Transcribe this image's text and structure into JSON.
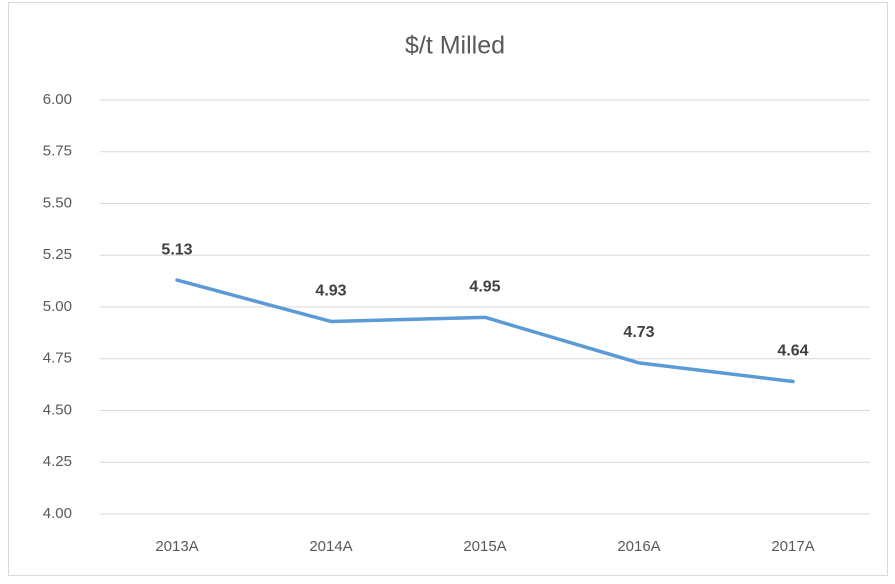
{
  "chart_data": {
    "type": "line",
    "title": "$/t Milled",
    "categories": [
      "2013A",
      "2014A",
      "2015A",
      "2016A",
      "2017A"
    ],
    "values": [
      5.13,
      4.93,
      4.95,
      4.73,
      4.64
    ],
    "color": "#5b9bd5",
    "ylim": [
      4,
      6
    ],
    "yticks": [
      {
        "value": 4,
        "label": "4.00"
      },
      {
        "value": 4.25,
        "label": "4.25"
      },
      {
        "value": 4.5,
        "label": "4.50"
      },
      {
        "value": 4.75,
        "label": "4.75"
      },
      {
        "value": 5,
        "label": "5.00"
      },
      {
        "value": 5.25,
        "label": "5.25"
      },
      {
        "value": 5.5,
        "label": "5.50"
      },
      {
        "value": 5.75,
        "label": "5.75"
      },
      {
        "value": 6,
        "label": "6.00"
      }
    ],
    "grid": true
  }
}
